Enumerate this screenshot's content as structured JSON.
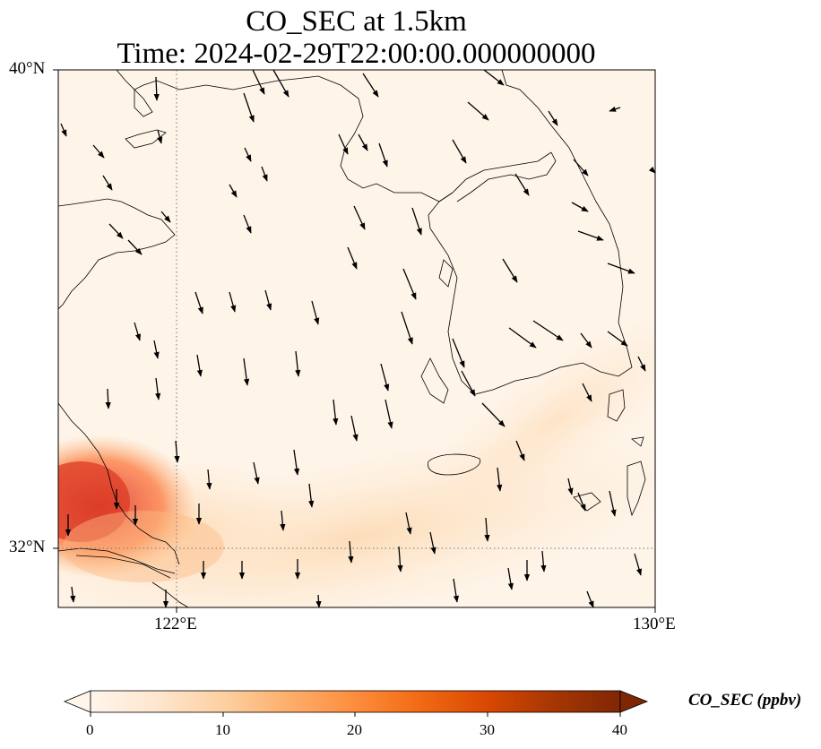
{
  "title_line1": "CO_SEC at 1.5km",
  "title_line2": "Time: 2024-02-29T22:00:00.000000000",
  "lat_labels": [
    "40°N",
    "32°N"
  ],
  "lon_labels": [
    "122°E",
    "130°E"
  ],
  "colorbar": {
    "title": "CO_SEC (ppbv)",
    "ticks": [
      "0",
      "10",
      "20",
      "30",
      "40"
    ],
    "min": 0,
    "max": 40,
    "colors": [
      "#fff5eb",
      "#fee6ce",
      "#fdd0a2",
      "#fdae6b",
      "#fd8d3c",
      "#f16913",
      "#d94801",
      "#a63603",
      "#7f2704"
    ]
  },
  "map": {
    "extent_lon": [
      120,
      130
    ],
    "extent_lat": [
      31,
      40
    ],
    "gridlines_lon": [
      122
    ],
    "gridlines_lat": [
      32
    ]
  }
}
